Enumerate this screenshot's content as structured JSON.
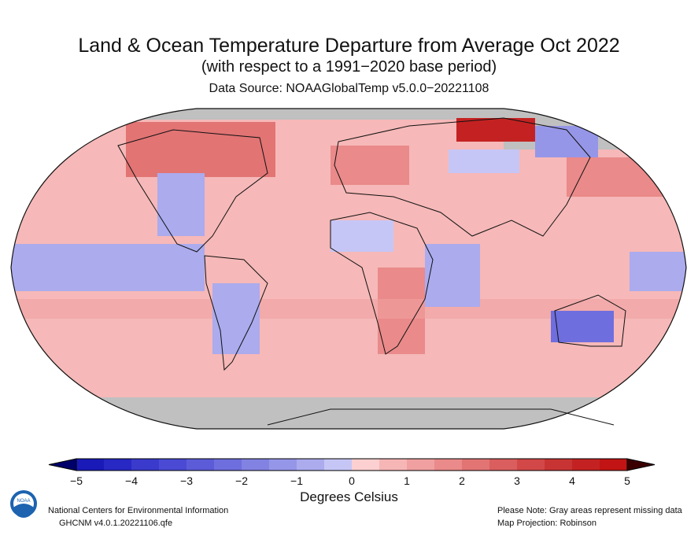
{
  "header": {
    "title": "Land & Ocean Temperature Departure from Average Oct 2022",
    "subtitle": "(with respect to a 1991−2020 base period)",
    "source": "Data Source: NOAAGlobalTemp v5.0.0−20221108"
  },
  "colorbar": {
    "ticks": [
      "−5",
      "−4",
      "−3",
      "−2",
      "−1",
      "0",
      "1",
      "2",
      "3",
      "4",
      "5"
    ],
    "label": "Degrees Celsius",
    "range": [
      -5,
      5
    ],
    "step": 0.5,
    "colors": [
      "#1a1ab8",
      "#2828c4",
      "#3a3acc",
      "#4a4ad4",
      "#5c5cd8",
      "#6e6ede",
      "#8282e2",
      "#9696e8",
      "#ababee",
      "#c6c6f6",
      "#fcd0d0",
      "#f6b6b6",
      "#f0a0a0",
      "#ea8a8a",
      "#e27474",
      "#da5e5e",
      "#d24848",
      "#c83434",
      "#c42222",
      "#c21414"
    ],
    "under_color": "#00006a",
    "over_color": "#3a0000"
  },
  "map": {
    "projection": "Robinson",
    "missing_color": "#c0c0c0",
    "ocean_base_color": "#f6b8b8"
  },
  "footer": {
    "org": "National Centers for Environmental Information",
    "dataset": "GHCNM v4.0.1.20221106.qfe",
    "note": "Please Note: Gray areas represent missing data",
    "projection": "Map Projection: Robinson",
    "logo_text": "NOAA"
  }
}
